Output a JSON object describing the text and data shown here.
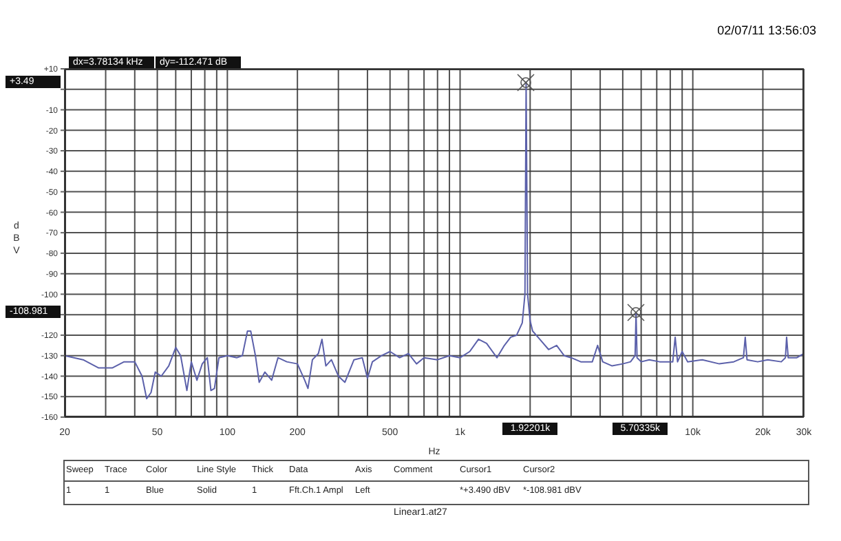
{
  "chart_data": {
    "type": "line",
    "xlabel": "Hz",
    "ylabel": "dBV",
    "log": "x",
    "grid": true,
    "legend": false,
    "marker": "none",
    "line_style": "solid",
    "xlim": [
      20,
      30000
    ],
    "xticks": [
      20,
      {
        "value": 30,
        "label": null
      },
      {
        "value": 40,
        "label": null
      },
      50,
      {
        "value": 60,
        "label": null
      },
      {
        "value": 70,
        "label": null
      },
      {
        "value": 80,
        "label": null
      },
      {
        "value": 90,
        "label": null
      },
      100,
      200,
      {
        "value": 300,
        "label": null
      },
      {
        "value": 400,
        "label": null
      },
      500,
      {
        "value": 600,
        "label": null
      },
      {
        "value": 700,
        "label": null
      },
      {
        "value": 800,
        "label": null
      },
      {
        "value": 900,
        "label": null
      },
      {
        "value": 1000,
        "label": "1k"
      },
      {
        "value": 2000,
        "label": null
      },
      {
        "value": 3000,
        "label": null
      },
      {
        "value": 4000,
        "label": null
      },
      {
        "value": 5000,
        "label": null
      },
      {
        "value": 6000,
        "label": null
      },
      {
        "value": 7000,
        "label": null
      },
      {
        "value": 8000,
        "label": null
      },
      {
        "value": 9000,
        "label": null
      },
      {
        "value": 10000,
        "label": "10k"
      },
      {
        "value": 20000,
        "label": "20k"
      },
      {
        "value": 30000,
        "label": "30k"
      }
    ],
    "ylim": [
      -160,
      10
    ],
    "yticks": [
      {
        "value": 10,
        "label": "+10"
      },
      {
        "value": 0,
        "label": null
      },
      -10,
      -20,
      -30,
      -40,
      -50,
      -60,
      -70,
      -80,
      -90,
      -100,
      {
        "value": -110,
        "label": null
      },
      -120,
      -130,
      -140,
      -150,
      -160
    ],
    "x": [
      20,
      24,
      28,
      32,
      36,
      40,
      43,
      45,
      47,
      49,
      52,
      56,
      60,
      63,
      67,
      70,
      74,
      78,
      82,
      85,
      88,
      92,
      100,
      110,
      116,
      122,
      126,
      132,
      137,
      145,
      155,
      165,
      180,
      200,
      215,
      222,
      232,
      246,
      255,
      265,
      280,
      300,
      320,
      350,
      380,
      400,
      420,
      460,
      500,
      550,
      600,
      650,
      700,
      800,
      900,
      1000,
      1100,
      1200,
      1300,
      1440,
      1550,
      1650,
      1750,
      1850,
      1900,
      1922.01,
      1950,
      2000,
      2050,
      2200,
      2400,
      2600,
      2800,
      3000,
      3300,
      3700,
      3900,
      4100,
      4500,
      5000,
      5400,
      5650,
      5703.35,
      5760,
      6000,
      6500,
      7200,
      8200,
      8400,
      8600,
      9000,
      9500,
      11000,
      13000,
      15000,
      16500,
      16800,
      17100,
      19000,
      21000,
      24000,
      25000,
      25300,
      25700,
      28000,
      30000
    ],
    "series": [
      {
        "color": "#5b60aa",
        "values": [
          -130,
          -132,
          -136,
          -136,
          -133,
          -133,
          -140,
          -151,
          -148,
          -138,
          -140,
          -135,
          -126,
          -130,
          -147,
          -133,
          -142,
          -134,
          -131,
          -147,
          -146,
          -131,
          -130,
          -131,
          -130,
          -118,
          -118,
          -130,
          -143,
          -138,
          -142,
          -131,
          -133,
          -134,
          -142,
          -146,
          -132,
          -129,
          -122,
          -135,
          -132,
          -140,
          -143,
          -132,
          -131,
          -141,
          -133,
          -130,
          -128,
          -131,
          -129,
          -134,
          -131,
          -132,
          -130,
          -131,
          -128,
          -122,
          -124,
          -131,
          -125,
          -121,
          -120,
          -114,
          -100,
          3.49,
          -100,
          -113,
          -118,
          -122,
          -127,
          -125,
          -130,
          -131,
          -133,
          -133,
          -125,
          -133,
          -135,
          -134,
          -133,
          -130,
          -108.981,
          -131,
          -133,
          -132,
          -133,
          -133,
          -121,
          -133,
          -128,
          -133,
          -132,
          -134,
          -133,
          -131,
          -121,
          -132,
          -133,
          -132,
          -133,
          -131,
          -121,
          -131,
          -131,
          -129
        ]
      }
    ],
    "annotations": [
      "02/07/11 13:56:03",
      "Linear1.at27",
      "Sweep",
      "Trace",
      "Color",
      "Line Style",
      "Thick",
      "Data",
      "Axis",
      "Comment",
      "Cursor1",
      "Cursor2",
      "1",
      "1",
      "Blue",
      "Solid",
      "1",
      "Fft.Ch.1 Ampl",
      "Left",
      "*+3.490  dBV",
      "*-108.981 dBV",
      "dx=3.78134 kHz",
      "dy=-112.471 dB",
      "+3.49",
      "1.92201k",
      "-108.981",
      "5.70335k"
    ]
  }
}
